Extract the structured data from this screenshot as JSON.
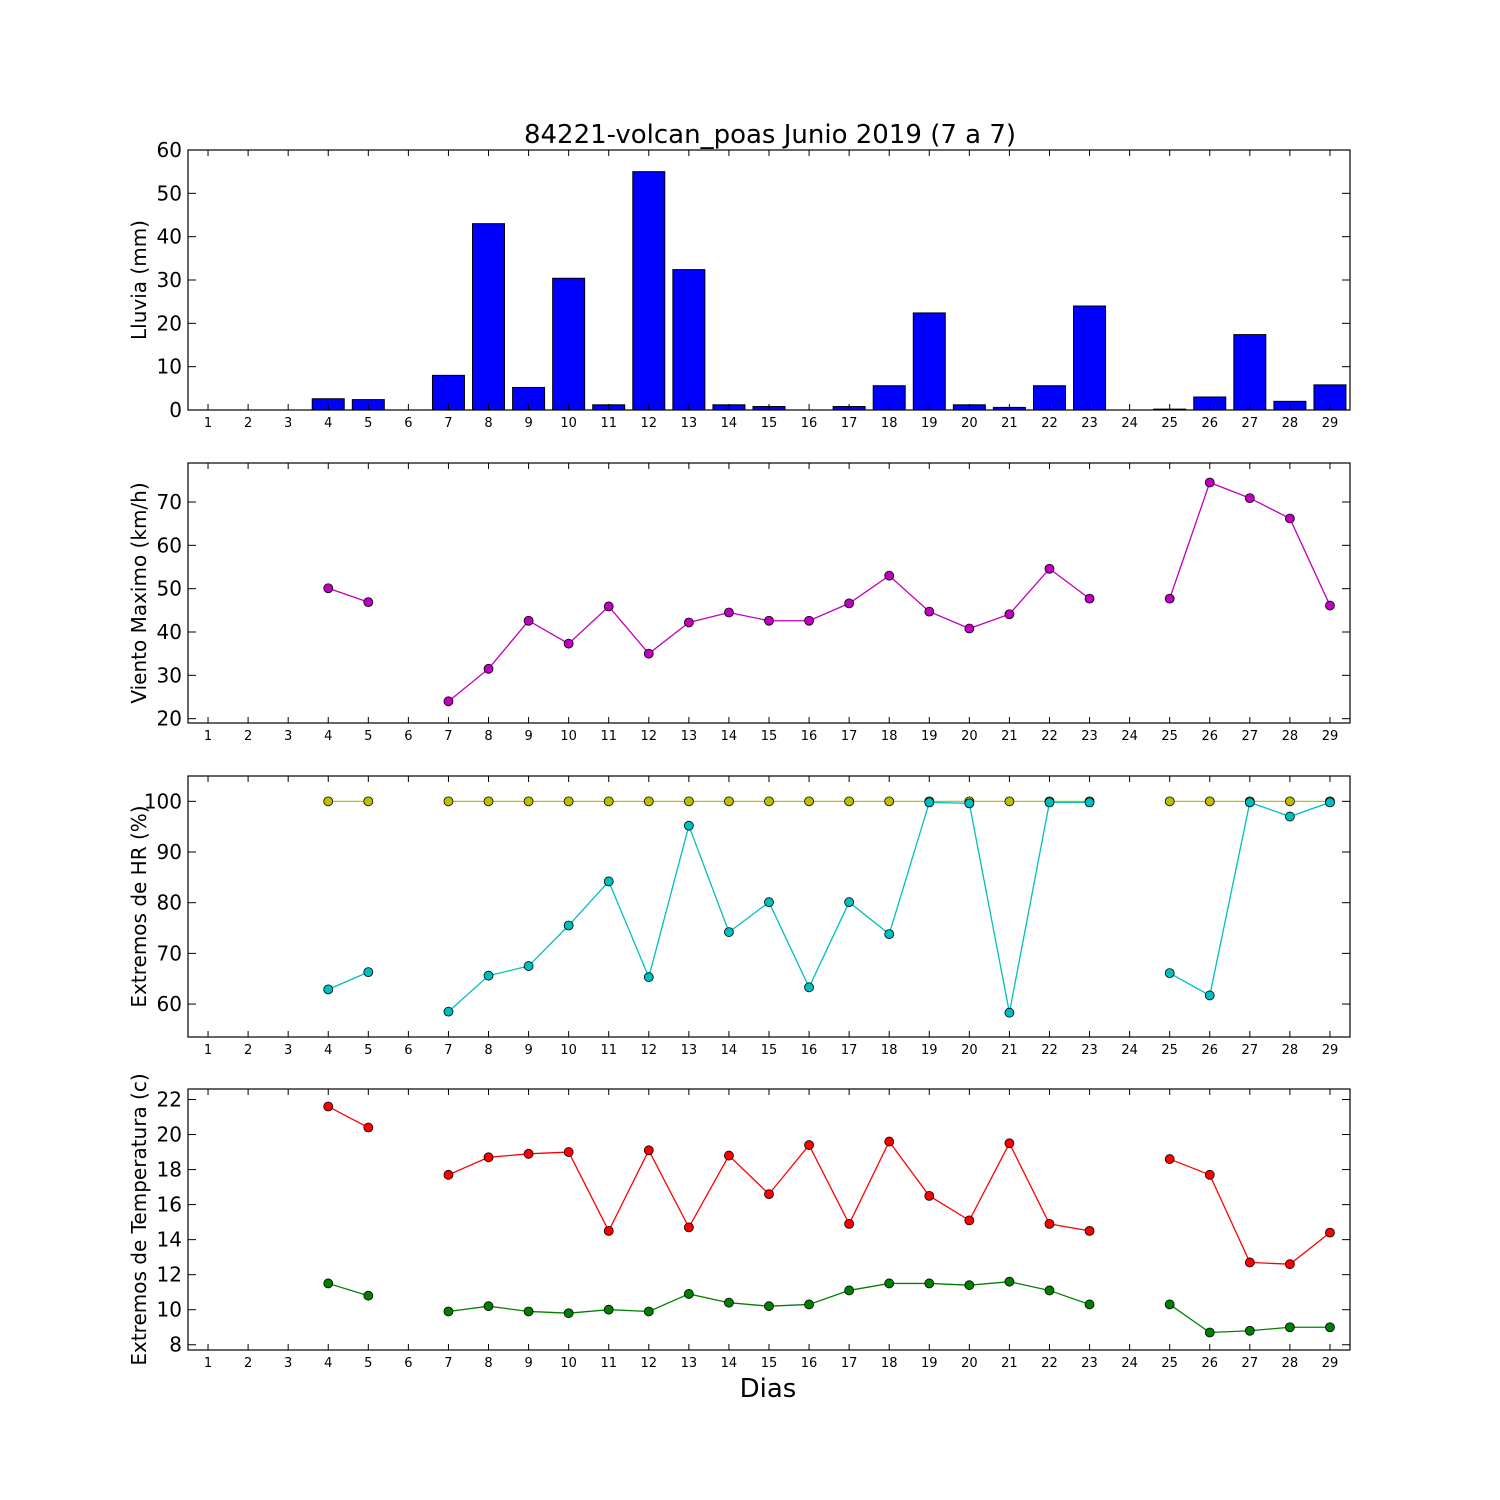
{
  "chart_data": {
    "title": "84221-volcan_poas Junio 2019  (7 a 7)",
    "xlabel": "Dias",
    "days": [
      1,
      2,
      3,
      4,
      5,
      6,
      7,
      8,
      9,
      10,
      11,
      12,
      13,
      14,
      15,
      16,
      17,
      18,
      19,
      20,
      21,
      22,
      23,
      24,
      25,
      26,
      27,
      28,
      29
    ],
    "xlim": [
      0.5,
      29.5
    ],
    "panels": [
      {
        "type": "bar",
        "ylabel": "Lluvia (mm)",
        "ylim": [
          0,
          60
        ],
        "yticks": [
          0,
          10,
          20,
          30,
          40,
          50,
          60
        ],
        "series": [
          {
            "color": "#0000ff",
            "values": [
              0,
              0,
              0,
              2.6,
              2.4,
              0,
              8.0,
              43.0,
              5.2,
              30.4,
              1.2,
              55.0,
              32.4,
              1.2,
              0.8,
              0,
              0.8,
              5.6,
              22.4,
              1.2,
              0.6,
              5.6,
              24.0,
              0,
              0.2,
              3.0,
              17.4,
              2.0,
              5.8
            ]
          }
        ]
      },
      {
        "type": "line",
        "ylabel": "Viento Maximo (km/h)",
        "ylim": [
          19,
          79
        ],
        "yticks": [
          20,
          30,
          40,
          50,
          60,
          70
        ],
        "series": [
          {
            "color": "#bf00bf",
            "values": [
              null,
              null,
              null,
              50.1,
              46.9,
              null,
              24.0,
              31.5,
              42.6,
              37.3,
              45.9,
              35.0,
              42.2,
              44.5,
              42.6,
              42.6,
              46.6,
              53.0,
              44.7,
              40.8,
              44.1,
              54.6,
              47.7,
              null,
              47.7,
              74.5,
              70.9,
              66.2,
              46.1
            ]
          }
        ]
      },
      {
        "type": "line",
        "ylabel": "Extremos de HR (%)",
        "ylim": [
          53.5,
          105
        ],
        "yticks": [
          60,
          70,
          80,
          90,
          100
        ],
        "series": [
          {
            "color": "#bfbf00",
            "values": [
              null,
              null,
              null,
              100,
              100,
              null,
              100,
              100,
              100,
              100,
              100,
              100,
              100,
              100,
              100,
              100,
              100,
              100,
              100,
              100,
              100,
              100,
              100,
              null,
              100,
              100,
              100,
              100,
              100
            ]
          },
          {
            "color": "#00bfbf",
            "values": [
              null,
              null,
              null,
              62.9,
              66.3,
              null,
              58.5,
              65.6,
              67.5,
              75.5,
              84.2,
              65.3,
              95.2,
              74.2,
              80.1,
              63.3,
              80.1,
              73.8,
              99.8,
              99.6,
              58.3,
              99.8,
              99.8,
              null,
              66.1,
              61.7,
              99.8,
              97.0,
              99.8
            ]
          }
        ]
      },
      {
        "type": "line",
        "ylabel": "Extremos de Temperatura (c)",
        "ylim": [
          7.7,
          22.6
        ],
        "yticks": [
          8,
          10,
          12,
          14,
          16,
          18,
          20,
          22
        ],
        "series": [
          {
            "color": "#ff0000",
            "values": [
              null,
              null,
              null,
              21.6,
              20.4,
              null,
              17.7,
              18.7,
              18.9,
              19.0,
              14.5,
              19.1,
              14.7,
              18.8,
              16.6,
              19.4,
              14.9,
              19.6,
              16.5,
              15.1,
              19.5,
              14.9,
              14.5,
              null,
              18.6,
              17.7,
              12.7,
              12.6,
              14.4
            ]
          },
          {
            "color": "#008000",
            "values": [
              null,
              null,
              null,
              11.5,
              10.8,
              null,
              9.9,
              10.2,
              9.9,
              9.8,
              10.0,
              9.9,
              10.9,
              10.4,
              10.2,
              10.3,
              11.1,
              11.5,
              11.5,
              11.4,
              11.6,
              11.1,
              10.3,
              null,
              10.3,
              8.7,
              8.8,
              9.0,
              9.0
            ]
          }
        ]
      }
    ]
  }
}
